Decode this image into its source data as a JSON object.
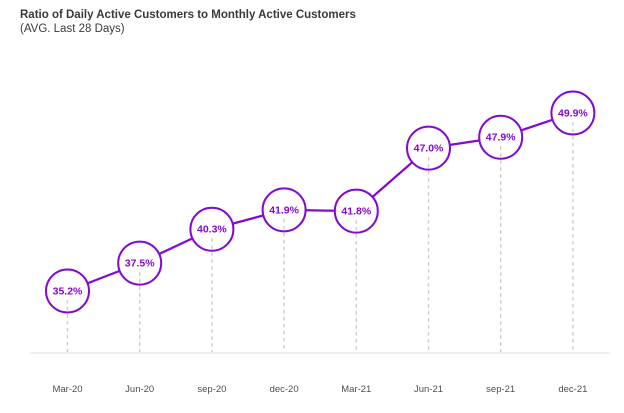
{
  "header": {
    "title": "Ratio of Daily Active Customers to Monthly Active Customers",
    "subtitle": "(AVG. Last 28 Days)"
  },
  "colors": {
    "accent": "#820AD1",
    "marker_fill": "#ffffff",
    "guide_line": "#cccccc",
    "axis_line": "#dcdcdc",
    "title_text": "#3a3a3a",
    "tick_text": "#4d4d4d"
  },
  "chart_data": {
    "type": "line",
    "title": "Ratio of Daily Active Customers to Monthly Active Customers",
    "subtitle": "(AVG. Last 28 Days)",
    "categories": [
      "Mar-20",
      "Jun-20",
      "sep-20",
      "dec-20",
      "Mar-21",
      "Jun-21",
      "sep-21",
      "dec-21"
    ],
    "values": [
      35.2,
      37.5,
      40.3,
      41.9,
      41.8,
      47.0,
      47.9,
      49.9
    ],
    "point_labels": [
      "35.2%",
      "37.5%",
      "40.3%",
      "41.9%",
      "41.8%",
      "47.0%",
      "47.9%",
      "49.9%"
    ],
    "xlabel": "",
    "ylabel": "",
    "ylim": [
      30,
      54
    ],
    "legend": "none",
    "grid": "dashed vertical guides from each point to baseline",
    "marker": "large open circle with value label inside"
  }
}
